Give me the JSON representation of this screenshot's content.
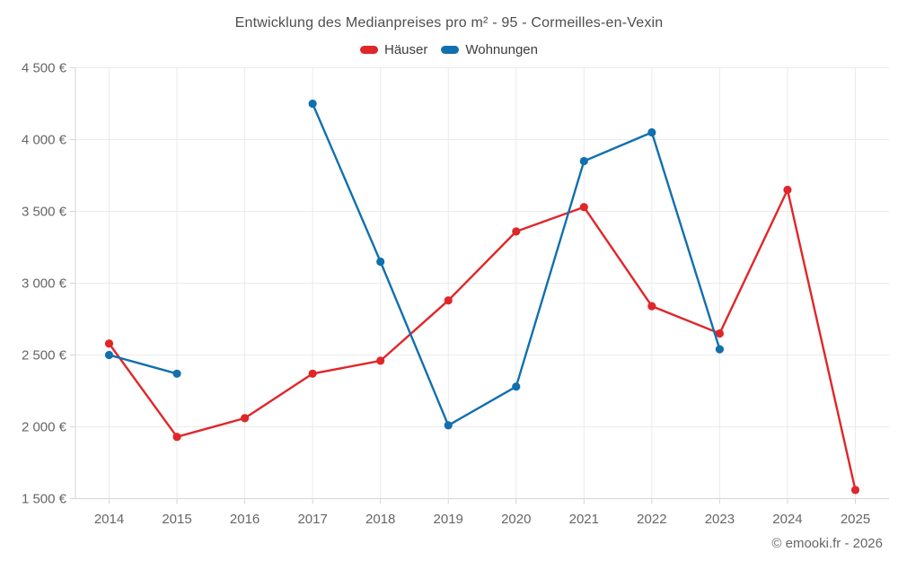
{
  "chart_data": {
    "type": "line",
    "title": "Entwicklung des Medianpreises pro m² - 95 - Cormeilles-en-Vexin",
    "categories": [
      "2014",
      "2015",
      "2016",
      "2017",
      "2018",
      "2019",
      "2020",
      "2021",
      "2022",
      "2023",
      "2024",
      "2025"
    ],
    "series": [
      {
        "name": "Häuser",
        "color": "#e02629",
        "values": [
          2580,
          1930,
          2060,
          2370,
          2460,
          2880,
          3360,
          3530,
          2840,
          2650,
          3650,
          1560
        ]
      },
      {
        "name": "Wohnungen",
        "color": "#1170ae",
        "values": [
          2500,
          2370,
          null,
          4250,
          3150,
          2010,
          2280,
          3850,
          4050,
          2540,
          null,
          null
        ]
      }
    ],
    "yticks": [
      {
        "value": 4500,
        "label": "4 500 €"
      },
      {
        "value": 4000,
        "label": "4 000 €"
      },
      {
        "value": 3500,
        "label": "3 500 €"
      },
      {
        "value": 3000,
        "label": "3 000 €"
      },
      {
        "value": 2500,
        "label": "2 500 €"
      },
      {
        "value": 2000,
        "label": "2 000 €"
      },
      {
        "value": 1500,
        "label": "1 500 €"
      }
    ],
    "ylim": [
      1500,
      4500
    ],
    "grid": true,
    "legend_position": "top",
    "grid_color": "#ebebeb",
    "axis_color": "#d6d6d6",
    "tick_label_color": "#666666"
  },
  "footer": "© emooki.fr - 2026"
}
